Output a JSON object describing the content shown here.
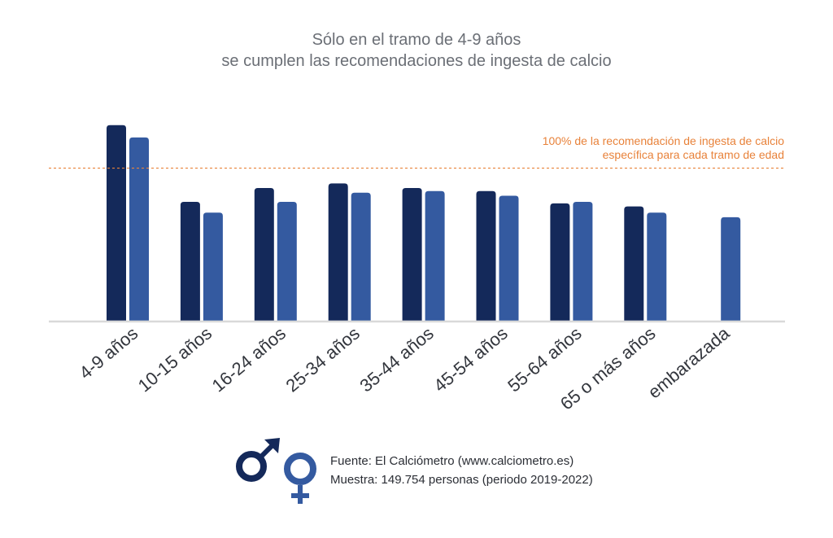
{
  "title": [
    "Sólo en el tramo de 4-9 años",
    "se cumplen las recomendaciones de ingesta de calcio"
  ],
  "reference": {
    "label": [
      "100% de la recomendación de ingesta de calcio",
      "específica para cada tramo de edad"
    ],
    "value": 100,
    "color": "#e8823a"
  },
  "source": {
    "line1": "Fuente: El Calciómetro (www.calciometro.es)",
    "line2": "Muestra: 149.754 personas (periodo 2019-2022)"
  },
  "icons": [
    "male-symbol-icon",
    "female-symbol-icon"
  ],
  "colors": {
    "male": "#14295a",
    "female": "#345aa0",
    "axis": "#d9d9d9"
  },
  "chart_data": {
    "type": "bar",
    "categories": [
      "4-9 años",
      "10-15 años",
      "16-24 años",
      "25-34 años",
      "35-44 años",
      "45-54 años",
      "55-64 años",
      "65 o más años",
      "embarazada"
    ],
    "series": [
      {
        "icon": "male-symbol-icon",
        "color": "#14295a",
        "values": [
          128,
          78,
          87,
          90,
          87,
          85,
          77,
          75,
          null
        ]
      },
      {
        "icon": "female-symbol-icon",
        "color": "#345aa0",
        "values": [
          120,
          71,
          78,
          84,
          85,
          82,
          78,
          71,
          68
        ]
      }
    ],
    "ylim": [
      0,
      130
    ],
    "ylabel": "",
    "xlabel": "",
    "grid": false,
    "reference_line": 100
  }
}
